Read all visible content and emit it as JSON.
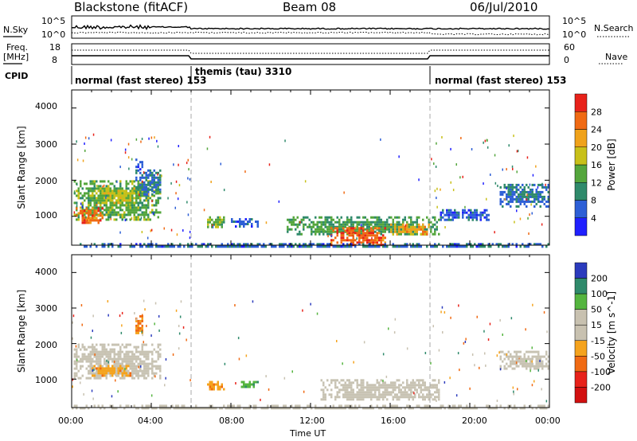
{
  "header": {
    "station": "Blackstone (fitACF)",
    "beam": "Beam 08",
    "date": "06/Jul/2010"
  },
  "strip1": {
    "left_label": "N.Sky",
    "left_ticks": [
      "10^5",
      "10^0"
    ],
    "right_label": "N.Search",
    "right_ticks": [
      "10^5",
      "10^0"
    ]
  },
  "strip2": {
    "left_label_line1": "Freq.",
    "left_label_line2": "[MHz]",
    "left_ticks": [
      "18",
      "8"
    ],
    "right_label": "Nave",
    "right_ticks": [
      "60",
      "0"
    ]
  },
  "cpid": {
    "label": "CPID",
    "modes": [
      {
        "name": "normal (fast stereo)",
        "code": "153",
        "start_hour": 0,
        "end_hour": 6
      },
      {
        "name": "themis (tau)",
        "code": "3310",
        "start_hour": 6,
        "end_hour": 18
      },
      {
        "name": "normal (fast stereo)",
        "code": "153",
        "start_hour": 18,
        "end_hour": 24
      }
    ]
  },
  "x_axis": {
    "label": "Time UT",
    "ticks": [
      "00:00",
      "04:00",
      "08:00",
      "12:00",
      "16:00",
      "20:00",
      "00:00"
    ]
  },
  "colors": {
    "power_scale": [
      "#2020ff",
      "#2d5fd6",
      "#2f8a6b",
      "#54a63c",
      "#c8c019",
      "#f0a21a",
      "#f06a13",
      "#e8221a"
    ],
    "velocity_scale": [
      "#e8221a",
      "#f06a13",
      "#f5a31d",
      "#c8c1b0",
      "#c8c1b0",
      "#55b53f",
      "#2f8a6b",
      "#2b3bbd"
    ],
    "gray": "#c8c3b3"
  },
  "chart_data": [
    {
      "type": "heatmap",
      "panel": "power",
      "ylabel": "Slant Range [km]",
      "yticks": [
        "1000",
        "2000",
        "3000",
        "4000"
      ],
      "ylim": [
        200,
        4500
      ],
      "xlabel": "Time UT",
      "xlim_hours": [
        0,
        24
      ],
      "colorbar": {
        "label": "Power [dB]",
        "ticks": [
          "4",
          "8",
          "12",
          "16",
          "20",
          "24",
          "28"
        ],
        "range": [
          0,
          30
        ]
      },
      "regions": [
        {
          "t0": 0.1,
          "t1": 4.5,
          "r0": 900,
          "r1": 2000,
          "p": 14
        },
        {
          "t0": 0.2,
          "t1": 1.6,
          "r0": 850,
          "r1": 1250,
          "p": 26
        },
        {
          "t0": 1.5,
          "t1": 3.2,
          "r0": 1400,
          "r1": 1800,
          "p": 18
        },
        {
          "t0": 3.2,
          "t1": 4.5,
          "r0": 1600,
          "r1": 2300,
          "p": 8
        },
        {
          "t0": 3.2,
          "t1": 3.6,
          "r0": 2300,
          "r1": 2600,
          "p": 5
        },
        {
          "t0": 6.7,
          "t1": 7.7,
          "r0": 700,
          "r1": 1000,
          "p": 14
        },
        {
          "t0": 8.0,
          "t1": 9.4,
          "r0": 750,
          "r1": 950,
          "p": 6
        },
        {
          "t0": 10.8,
          "t1": 18.5,
          "r0": 500,
          "r1": 1000,
          "p": 12
        },
        {
          "t0": 13.0,
          "t1": 15.8,
          "r0": 200,
          "r1": 700,
          "p": 27
        },
        {
          "t0": 16.0,
          "t1": 18.0,
          "r0": 500,
          "r1": 800,
          "p": 22
        },
        {
          "t0": 18.5,
          "t1": 21.0,
          "r0": 900,
          "r1": 1200,
          "p": 6
        },
        {
          "t0": 21.5,
          "t1": 24.0,
          "r0": 1300,
          "r1": 1900,
          "p": 8
        },
        {
          "t0": 0.0,
          "t1": 24.0,
          "r0": 180,
          "r1": 260,
          "p": 7
        }
      ]
    },
    {
      "type": "heatmap",
      "panel": "velocity",
      "ylabel": "Slant Range [km]",
      "yticks": [
        "1000",
        "2000",
        "3000",
        "4000"
      ],
      "ylim": [
        200,
        4500
      ],
      "xlabel": "Time UT",
      "xlim_hours": [
        0,
        24
      ],
      "colorbar": {
        "label": "Velocity [m s^-1]",
        "ticks": [
          "200",
          "100",
          "50",
          "15",
          "-15",
          "-50",
          "-100",
          "-200"
        ],
        "range": [
          -250,
          250
        ]
      },
      "regions": [
        {
          "t0": 0.1,
          "t1": 4.5,
          "r0": 1000,
          "r1": 2000,
          "v": 0
        },
        {
          "t0": 1.0,
          "t1": 3.0,
          "r0": 1100,
          "r1": 1400,
          "v": -60
        },
        {
          "t0": 3.2,
          "t1": 3.6,
          "r0": 2300,
          "r1": 2800,
          "v": -80
        },
        {
          "t0": 6.7,
          "t1": 7.7,
          "r0": 700,
          "r1": 950,
          "v": -70
        },
        {
          "t0": 8.5,
          "t1": 9.4,
          "r0": 750,
          "r1": 950,
          "v": 60
        },
        {
          "t0": 12.5,
          "t1": 18.5,
          "r0": 400,
          "r1": 1000,
          "v": 0
        },
        {
          "t0": 21.5,
          "t1": 24.0,
          "r0": 1300,
          "r1": 1800,
          "v": 0
        },
        {
          "t0": 0.0,
          "t1": 24.0,
          "r0": 180,
          "r1": 280,
          "v": 10
        }
      ]
    }
  ]
}
